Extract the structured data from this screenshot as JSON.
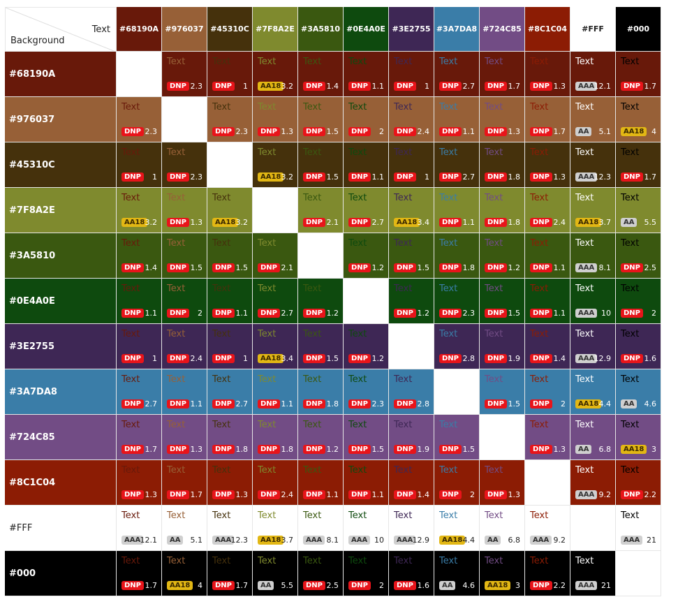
{
  "corner": {
    "text_label": "Text",
    "background_label": "Background"
  },
  "sample_text": "Text",
  "colors": [
    "#68190A",
    "#976037",
    "#45310C",
    "#7F8A2E",
    "#3A5810",
    "#0E4A0E",
    "#3E2755",
    "#3A7DA8",
    "#724C85",
    "#8C1C04",
    "#FFF",
    "#000"
  ],
  "badges": {
    "DNP": {
      "label": "DNP",
      "color": "#e8141a"
    },
    "AA18": {
      "label": "AA18",
      "color": "#e2b714"
    },
    "AA": {
      "label": "AA",
      "color": "#cfcfcf"
    },
    "AAA": {
      "label": "AAA",
      "color": "#cfcfcf"
    }
  },
  "matrix": [
    [
      null,
      [
        "DNP",
        "2.3"
      ],
      [
        "DNP",
        "1"
      ],
      [
        "AA18",
        "3.2"
      ],
      [
        "DNP",
        "1.4"
      ],
      [
        "DNP",
        "1.1"
      ],
      [
        "DNP",
        "1"
      ],
      [
        "DNP",
        "2.7"
      ],
      [
        "DNP",
        "1.7"
      ],
      [
        "DNP",
        "1.3"
      ],
      [
        "AAA",
        "12.1"
      ],
      [
        "DNP",
        "1.7"
      ]
    ],
    [
      [
        "DNP",
        "2.3"
      ],
      null,
      [
        "DNP",
        "2.3"
      ],
      [
        "DNP",
        "1.3"
      ],
      [
        "DNP",
        "1.5"
      ],
      [
        "DNP",
        "2"
      ],
      [
        "DNP",
        "2.4"
      ],
      [
        "DNP",
        "1.1"
      ],
      [
        "DNP",
        "1.3"
      ],
      [
        "DNP",
        "1.7"
      ],
      [
        "AA",
        "5.1"
      ],
      [
        "AA18",
        "4"
      ]
    ],
    [
      [
        "DNP",
        "1"
      ],
      [
        "DNP",
        "2.3"
      ],
      null,
      [
        "AA18",
        "3.2"
      ],
      [
        "DNP",
        "1.5"
      ],
      [
        "DNP",
        "1.1"
      ],
      [
        "DNP",
        "1"
      ],
      [
        "DNP",
        "2.7"
      ],
      [
        "DNP",
        "1.8"
      ],
      [
        "DNP",
        "1.3"
      ],
      [
        "AAA",
        "12.3"
      ],
      [
        "DNP",
        "1.7"
      ]
    ],
    [
      [
        "AA18",
        "3.2"
      ],
      [
        "DNP",
        "1.3"
      ],
      [
        "AA18",
        "3.2"
      ],
      null,
      [
        "DNP",
        "2.1"
      ],
      [
        "DNP",
        "2.7"
      ],
      [
        "AA18",
        "3.4"
      ],
      [
        "DNP",
        "1.1"
      ],
      [
        "DNP",
        "1.8"
      ],
      [
        "DNP",
        "2.4"
      ],
      [
        "AA18",
        "3.7"
      ],
      [
        "AA",
        "5.5"
      ]
    ],
    [
      [
        "DNP",
        "1.4"
      ],
      [
        "DNP",
        "1.5"
      ],
      [
        "DNP",
        "1.5"
      ],
      [
        "DNP",
        "2.1"
      ],
      null,
      [
        "DNP",
        "1.2"
      ],
      [
        "DNP",
        "1.5"
      ],
      [
        "DNP",
        "1.8"
      ],
      [
        "DNP",
        "1.2"
      ],
      [
        "DNP",
        "1.1"
      ],
      [
        "AAA",
        "8.1"
      ],
      [
        "DNP",
        "2.5"
      ]
    ],
    [
      [
        "DNP",
        "1.1"
      ],
      [
        "DNP",
        "2"
      ],
      [
        "DNP",
        "1.1"
      ],
      [
        "DNP",
        "2.7"
      ],
      [
        "DNP",
        "1.2"
      ],
      null,
      [
        "DNP",
        "1.2"
      ],
      [
        "DNP",
        "2.3"
      ],
      [
        "DNP",
        "1.5"
      ],
      [
        "DNP",
        "1.1"
      ],
      [
        "AAA",
        "10"
      ],
      [
        "DNP",
        "2"
      ]
    ],
    [
      [
        "DNP",
        "1"
      ],
      [
        "DNP",
        "2.4"
      ],
      [
        "DNP",
        "1"
      ],
      [
        "AA18",
        "3.4"
      ],
      [
        "DNP",
        "1.5"
      ],
      [
        "DNP",
        "1.2"
      ],
      null,
      [
        "DNP",
        "2.8"
      ],
      [
        "DNP",
        "1.9"
      ],
      [
        "DNP",
        "1.4"
      ],
      [
        "AAA",
        "12.9"
      ],
      [
        "DNP",
        "1.6"
      ]
    ],
    [
      [
        "DNP",
        "2.7"
      ],
      [
        "DNP",
        "1.1"
      ],
      [
        "DNP",
        "2.7"
      ],
      [
        "DNP",
        "1.1"
      ],
      [
        "DNP",
        "1.8"
      ],
      [
        "DNP",
        "2.3"
      ],
      [
        "DNP",
        "2.8"
      ],
      null,
      [
        "DNP",
        "1.5"
      ],
      [
        "DNP",
        "2"
      ],
      [
        "AA18",
        "4.4"
      ],
      [
        "AA",
        "4.6"
      ]
    ],
    [
      [
        "DNP",
        "1.7"
      ],
      [
        "DNP",
        "1.3"
      ],
      [
        "DNP",
        "1.8"
      ],
      [
        "DNP",
        "1.8"
      ],
      [
        "DNP",
        "1.2"
      ],
      [
        "DNP",
        "1.5"
      ],
      [
        "DNP",
        "1.9"
      ],
      [
        "DNP",
        "1.5"
      ],
      null,
      [
        "DNP",
        "1.3"
      ],
      [
        "AA",
        "6.8"
      ],
      [
        "AA18",
        "3"
      ]
    ],
    [
      [
        "DNP",
        "1.3"
      ],
      [
        "DNP",
        "1.7"
      ],
      [
        "DNP",
        "1.3"
      ],
      [
        "DNP",
        "2.4"
      ],
      [
        "DNP",
        "1.1"
      ],
      [
        "DNP",
        "1.1"
      ],
      [
        "DNP",
        "1.4"
      ],
      [
        "DNP",
        "2"
      ],
      [
        "DNP",
        "1.3"
      ],
      null,
      [
        "AAA",
        "9.2"
      ],
      [
        "DNP",
        "2.2"
      ]
    ],
    [
      [
        "AAA",
        "12.1"
      ],
      [
        "AA",
        "5.1"
      ],
      [
        "AAA",
        "12.3"
      ],
      [
        "AA18",
        "3.7"
      ],
      [
        "AAA",
        "8.1"
      ],
      [
        "AAA",
        "10"
      ],
      [
        "AAA",
        "12.9"
      ],
      [
        "AA18",
        "4.4"
      ],
      [
        "AA",
        "6.8"
      ],
      [
        "AAA",
        "9.2"
      ],
      null,
      [
        "AAA",
        "21"
      ]
    ],
    [
      [
        "DNP",
        "1.7"
      ],
      [
        "AA18",
        "4"
      ],
      [
        "DNP",
        "1.7"
      ],
      [
        "AA",
        "5.5"
      ],
      [
        "DNP",
        "2.5"
      ],
      [
        "DNP",
        "2"
      ],
      [
        "DNP",
        "1.6"
      ],
      [
        "AA",
        "4.6"
      ],
      [
        "AA18",
        "3"
      ],
      [
        "DNP",
        "2.2"
      ],
      [
        "AAA",
        "21"
      ],
      null
    ]
  ]
}
